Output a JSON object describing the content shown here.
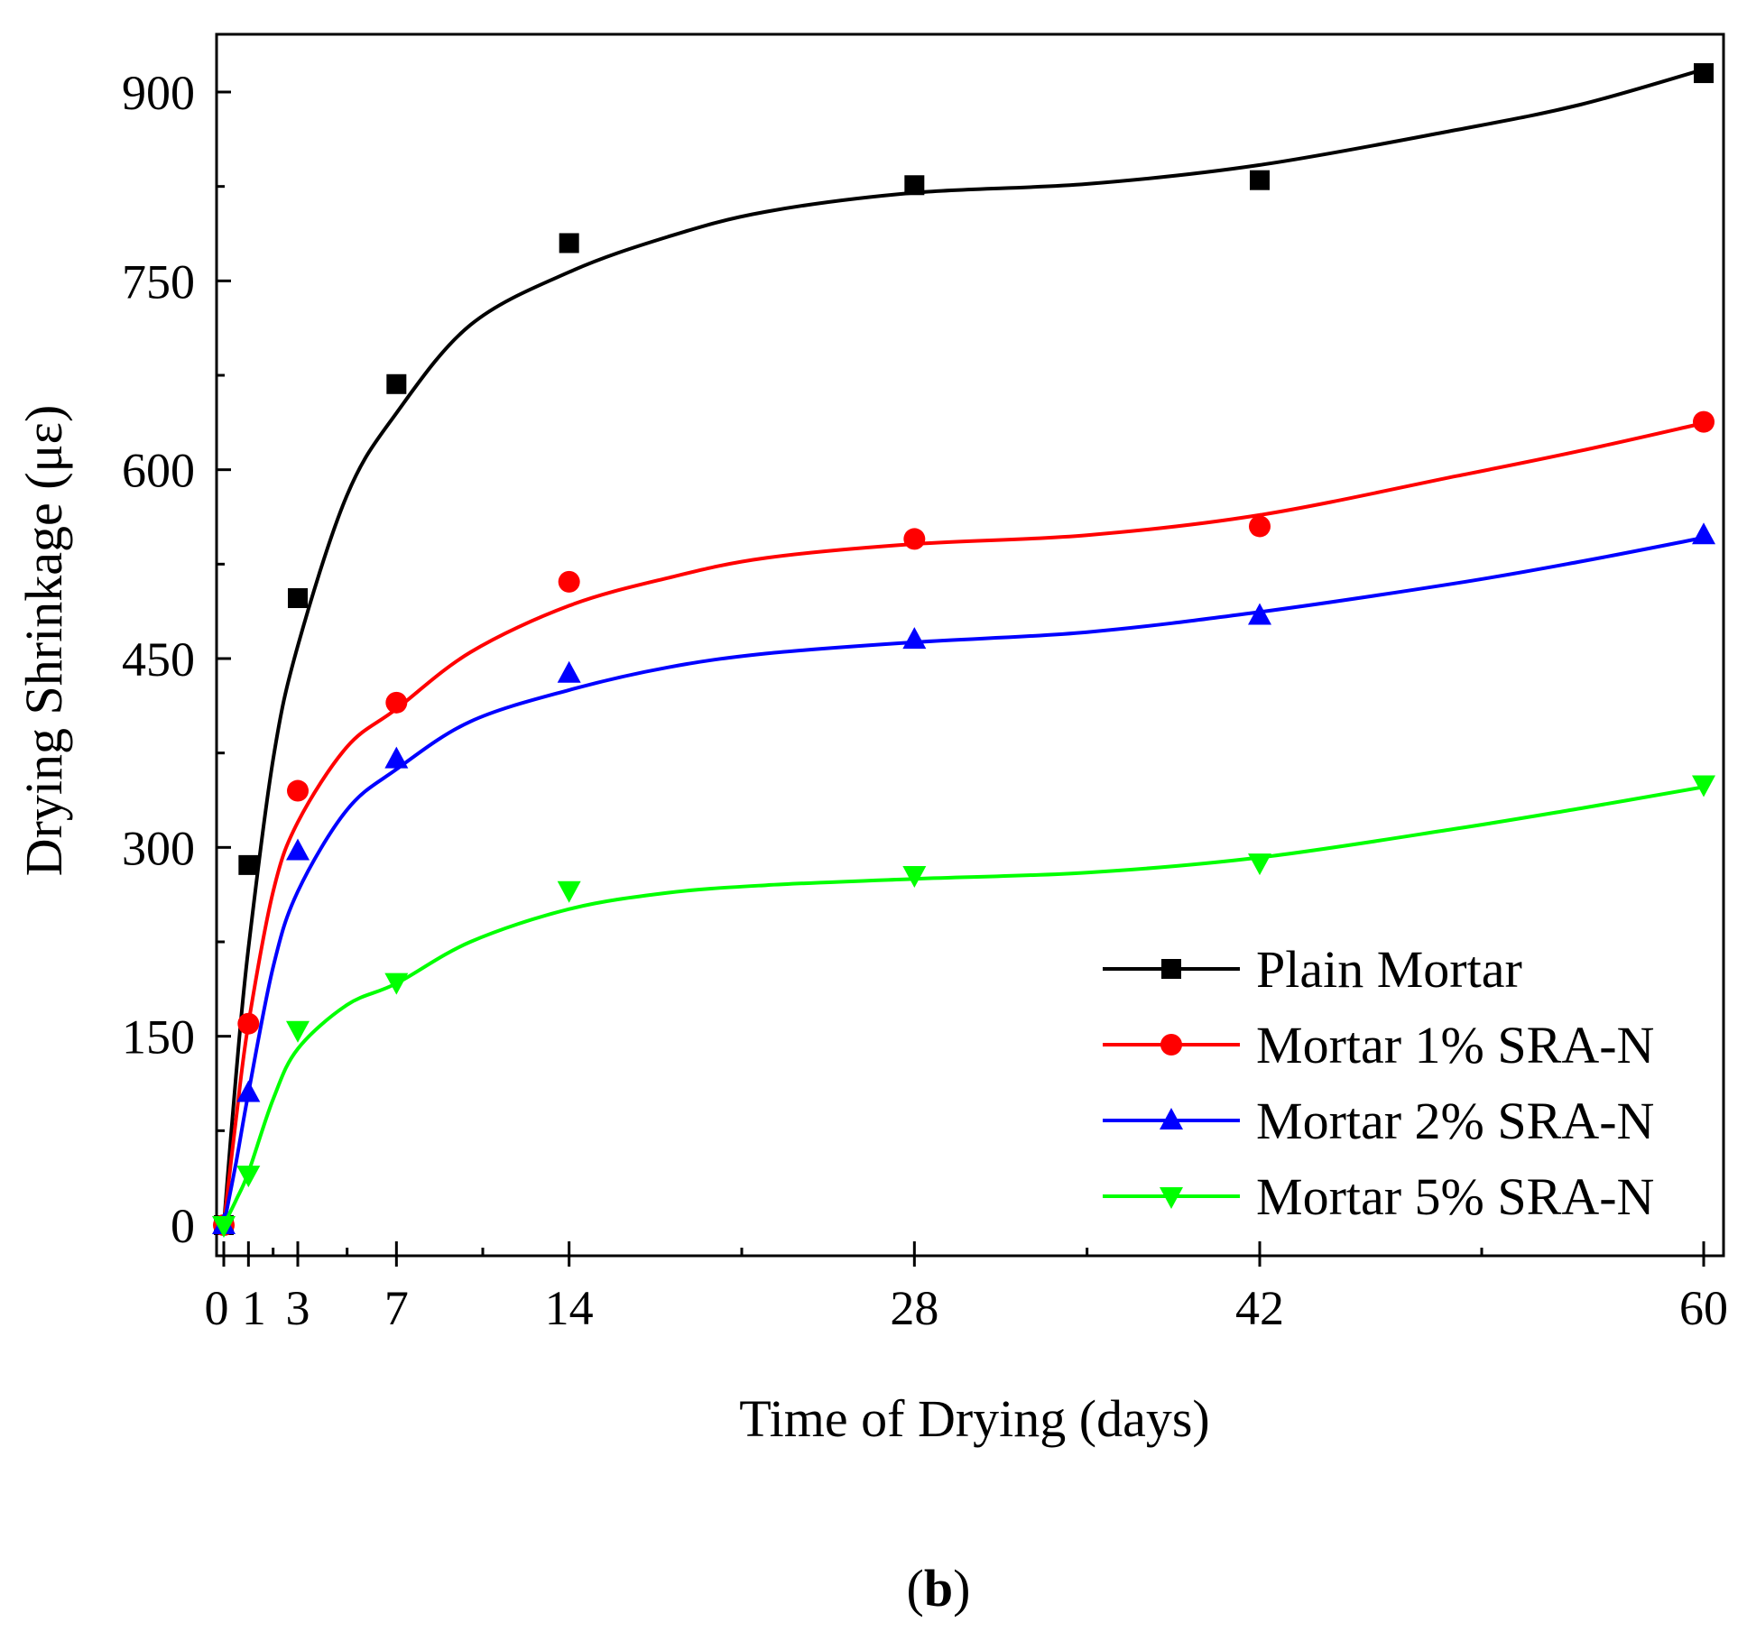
{
  "chart_data": {
    "type": "scatter",
    "title": "",
    "xlabel": "Time of Drying (days)",
    "ylabel": "Drying Shrinkage (με)",
    "xlim": [
      0,
      60
    ],
    "ylim": [
      -30,
      960
    ],
    "x_ticks": [
      0,
      1,
      3,
      7,
      14,
      28,
      42,
      60
    ],
    "x_tick_labels": [
      "0",
      "1",
      "3",
      "7",
      "14",
      "28",
      "42",
      "60"
    ],
    "x_minor_ticks": [
      2,
      5,
      10.5,
      21,
      35,
      51
    ],
    "y_ticks": [
      0,
      150,
      300,
      450,
      600,
      750,
      900
    ],
    "y_tick_labels": [
      "0",
      "150",
      "300",
      "450",
      "600",
      "750",
      "900"
    ],
    "y_minor_ticks": [
      75,
      225,
      375,
      525,
      675,
      825
    ],
    "grid": false,
    "legend_position": "bottom-right",
    "x": [
      0,
      1,
      3,
      7,
      14,
      28,
      42,
      60
    ],
    "series": [
      {
        "name": "Plain Mortar",
        "color": "#000000",
        "marker": "square",
        "values": [
          0,
          286,
          498,
          668,
          780,
          826,
          830,
          915
        ],
        "fit": [
          [
            0,
            0
          ],
          [
            0.5,
            120
          ],
          [
            1,
            220
          ],
          [
            2,
            370
          ],
          [
            3,
            460
          ],
          [
            5,
            580
          ],
          [
            7,
            645
          ],
          [
            10,
            715
          ],
          [
            14,
            757
          ],
          [
            18,
            785
          ],
          [
            22,
            805
          ],
          [
            28,
            820
          ],
          [
            35,
            827
          ],
          [
            42,
            842
          ],
          [
            50,
            870
          ],
          [
            55,
            890
          ],
          [
            60,
            918
          ]
        ]
      },
      {
        "name": "Mortar 1% SRA-N",
        "color": "#ff0000",
        "marker": "circle",
        "values": [
          0,
          160,
          345,
          415,
          511,
          545,
          555,
          638
        ],
        "fit": [
          [
            0,
            0
          ],
          [
            0.5,
            85
          ],
          [
            1,
            160
          ],
          [
            2,
            265
          ],
          [
            3,
            320
          ],
          [
            5,
            380
          ],
          [
            7,
            410
          ],
          [
            10,
            455
          ],
          [
            14,
            492
          ],
          [
            18,
            514
          ],
          [
            22,
            530
          ],
          [
            28,
            541
          ],
          [
            35,
            548
          ],
          [
            42,
            564
          ],
          [
            50,
            595
          ],
          [
            55,
            615
          ],
          [
            60,
            637
          ]
        ]
      },
      {
        "name": "Mortar 2% SRA-N",
        "color": "#0000ff",
        "marker": "triangle-up",
        "values": [
          0,
          105,
          297,
          370,
          438,
          465,
          484,
          548
        ],
        "fit": [
          [
            0,
            0
          ],
          [
            0.5,
            50
          ],
          [
            1,
            105
          ],
          [
            2,
            205
          ],
          [
            3,
            265
          ],
          [
            5,
            330
          ],
          [
            7,
            362
          ],
          [
            10,
            400
          ],
          [
            14,
            425
          ],
          [
            18,
            443
          ],
          [
            22,
            454
          ],
          [
            28,
            463
          ],
          [
            35,
            471
          ],
          [
            42,
            487
          ],
          [
            50,
            510
          ],
          [
            55,
            527
          ],
          [
            60,
            546
          ]
        ]
      },
      {
        "name": "Mortar 5% SRA-N",
        "color": "#00ff00",
        "marker": "triangle-down",
        "values": [
          0,
          40,
          155,
          193,
          266,
          278,
          288,
          350
        ],
        "fit": [
          [
            0,
            0
          ],
          [
            0.5,
            20
          ],
          [
            1,
            42
          ],
          [
            2,
            100
          ],
          [
            3,
            140
          ],
          [
            5,
            175
          ],
          [
            7,
            192
          ],
          [
            10,
            225
          ],
          [
            14,
            251
          ],
          [
            18,
            264
          ],
          [
            22,
            270
          ],
          [
            28,
            275
          ],
          [
            35,
            280
          ],
          [
            42,
            292
          ],
          [
            50,
            315
          ],
          [
            55,
            331
          ],
          [
            60,
            348
          ]
        ]
      }
    ],
    "panel_label": {
      "open": "(",
      "letter": "b",
      "close": ")"
    }
  }
}
